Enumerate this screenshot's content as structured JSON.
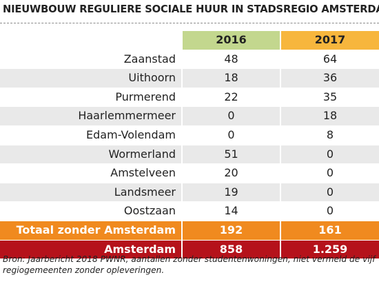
{
  "chart_data": {
    "type": "table",
    "title": "NIEUWBOUW REGULIERE SOCIALE HUUR IN STADSREGIO AMSTERDAM",
    "columns": [
      "2016",
      "2017"
    ],
    "rows": [
      {
        "label": "Zaanstad",
        "values": [
          "48",
          "64"
        ]
      },
      {
        "label": "Uithoorn",
        "values": [
          "18",
          "36"
        ]
      },
      {
        "label": "Purmerend",
        "values": [
          "22",
          "35"
        ]
      },
      {
        "label": "Haarlemmermeer",
        "values": [
          "0",
          "18"
        ]
      },
      {
        "label": "Edam-Volendam",
        "values": [
          "0",
          "8"
        ]
      },
      {
        "label": "Wormerland",
        "values": [
          "51",
          "0"
        ]
      },
      {
        "label": "Amstelveen",
        "values": [
          "20",
          "0"
        ]
      },
      {
        "label": "Landsmeer",
        "values": [
          "19",
          "0"
        ]
      },
      {
        "label": "Oostzaan",
        "values": [
          "14",
          "0"
        ]
      }
    ],
    "total": {
      "label": "Totaal zonder Amsterdam",
      "values": [
        "192",
        "161"
      ]
    },
    "amsterdam": {
      "label": "Amsterdam",
      "values": [
        "858",
        "1.259"
      ]
    },
    "source": "Bron: Jaarbericht 2018 PWNR, aantallen zonder studentenwoningen, niet vermeld de vijf regiogemeenten zonder opleveringen.",
    "colors": {
      "col_2016": "#c3d78e",
      "col_2017": "#f7b63d",
      "total_row": "#f08a1f",
      "amsterdam_row": "#b5121b",
      "stripe": "#e9e9e9"
    }
  }
}
